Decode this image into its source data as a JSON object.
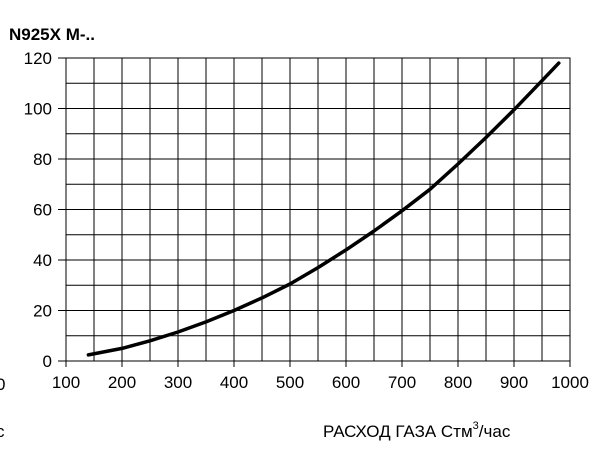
{
  "chart_data": {
    "type": "line",
    "title": "N925X M-..",
    "xlabel": "РАСХОД ГАЗА Стм",
    "xlabel_sup": "3",
    "xlabel_suffix": "/час",
    "left_edge_fragments": [
      "0",
      "с"
    ],
    "ylabel": "",
    "xlim": [
      100,
      1000
    ],
    "ylim": [
      0,
      120
    ],
    "x_ticks": [
      100,
      200,
      300,
      400,
      500,
      600,
      700,
      800,
      900,
      1000
    ],
    "y_ticks": [
      0,
      20,
      40,
      60,
      80,
      100,
      120
    ],
    "grid": true,
    "grid_minor_x_step": 50,
    "grid_minor_y_step": 10,
    "series": [
      {
        "color": "#000000",
        "x": [
          140,
          200,
          250,
          300,
          350,
          400,
          450,
          500,
          550,
          600,
          650,
          700,
          750,
          800,
          850,
          900,
          950,
          980
        ],
        "y": [
          2.4,
          5,
          8,
          11.5,
          15.5,
          20,
          25,
          30.5,
          37,
          44,
          51.5,
          59.5,
          68,
          78,
          88.5,
          99.5,
          111,
          118
        ]
      }
    ]
  }
}
